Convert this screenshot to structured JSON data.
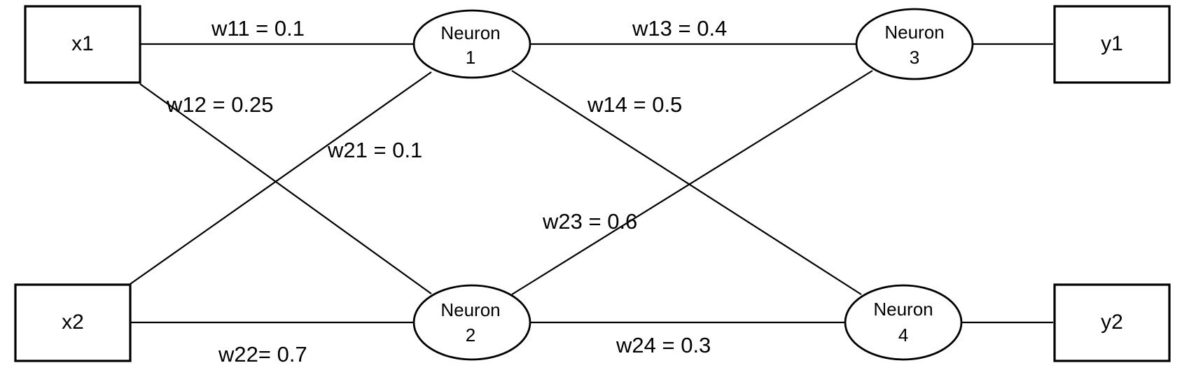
{
  "inputs": [
    {
      "label": "x1"
    },
    {
      "label": "x2"
    }
  ],
  "outputs": [
    {
      "label": "y1"
    },
    {
      "label": "y2"
    }
  ],
  "neurons": [
    {
      "name": "Neuron",
      "number": "1"
    },
    {
      "name": "Neuron",
      "number": "2"
    },
    {
      "name": "Neuron",
      "number": "3"
    },
    {
      "name": "Neuron",
      "number": "4"
    }
  ],
  "weights": {
    "w11": "w11 = 0.1",
    "w12": "w12 = 0.25",
    "w21": "w21 = 0.1",
    "w22": "w22= 0.7",
    "w13": "w13 = 0.4",
    "w14": "w14 = 0.5",
    "w23": "w23 = 0.6",
    "w24": "w24 = 0.3"
  }
}
